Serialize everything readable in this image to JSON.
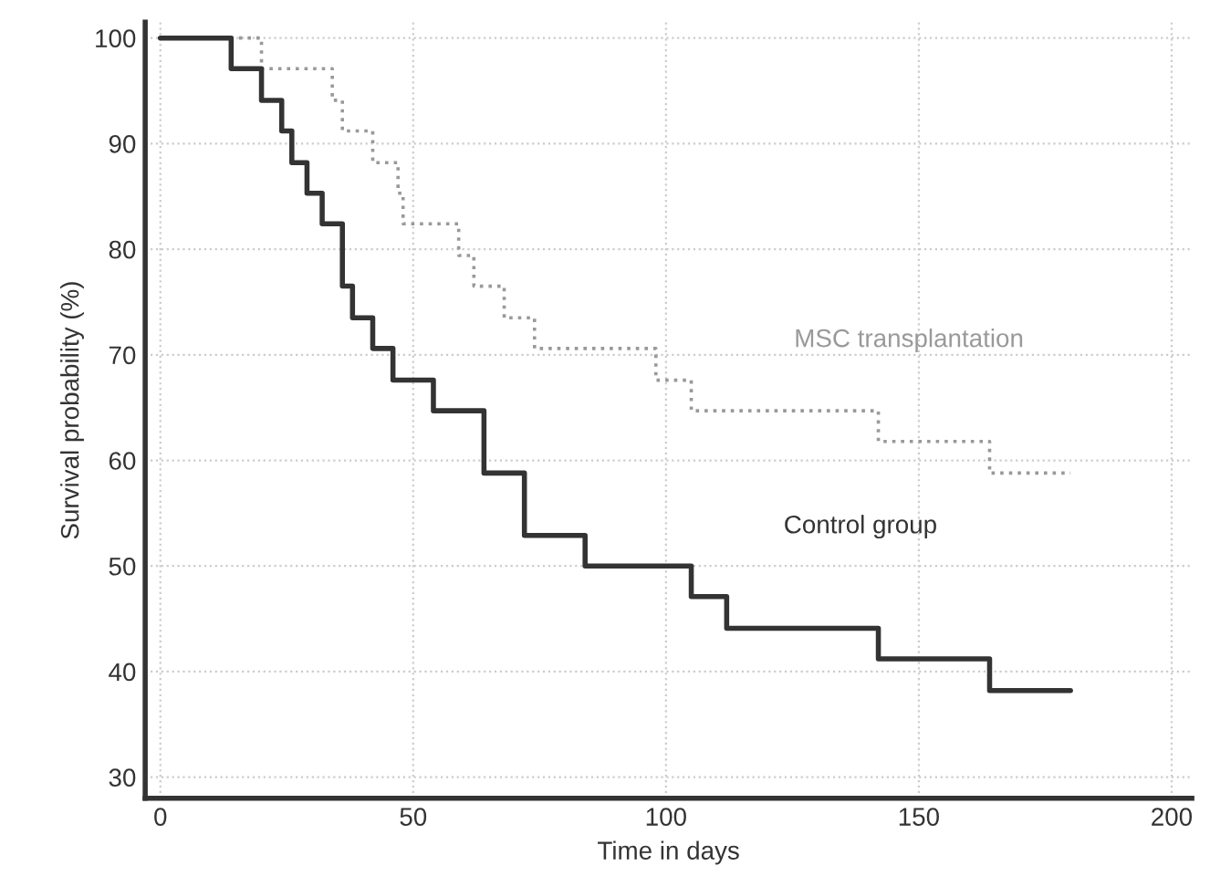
{
  "chart_data": {
    "type": "step",
    "xlabel": "Time in days",
    "ylabel": "Survival probability (%)",
    "xlim": [
      -3,
      204
    ],
    "ylim": [
      28,
      101.5
    ],
    "xticks": [
      0,
      50,
      100,
      150,
      200
    ],
    "yticks": [
      30,
      40,
      50,
      60,
      70,
      80,
      90,
      100
    ],
    "grid": true,
    "legend": false,
    "series": [
      {
        "name": "MSC transplantation",
        "color": "#999999",
        "line_style": "dotted",
        "x": [
          0,
          20,
          34,
          36,
          42,
          47,
          48,
          59,
          62,
          68,
          74,
          98,
          105,
          142,
          164,
          180
        ],
        "values": [
          100,
          97.1,
          94.1,
          91.2,
          88.2,
          85.3,
          82.4,
          79.4,
          76.5,
          73.5,
          70.6,
          67.6,
          64.7,
          61.8,
          58.8,
          58.8
        ]
      },
      {
        "name": "Control group",
        "color": "#333333",
        "line_style": "solid",
        "x": [
          0,
          14,
          20,
          24,
          26,
          29,
          32,
          36,
          38,
          42,
          46,
          54,
          64,
          72,
          84,
          105,
          112,
          142,
          164,
          180
        ],
        "values": [
          100,
          97.1,
          94.1,
          91.2,
          88.2,
          85.3,
          82.4,
          76.5,
          73.5,
          70.6,
          67.6,
          64.7,
          58.8,
          52.9,
          50,
          47.1,
          44.1,
          41.2,
          38.2,
          38.2
        ]
      }
    ]
  }
}
